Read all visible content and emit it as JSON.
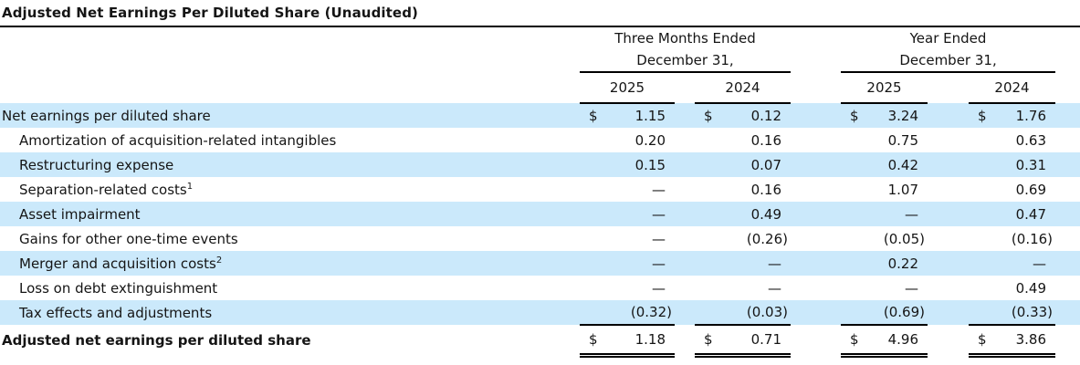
{
  "title": "Adjusted Net Earnings Per Diluted Share (Unaudited)",
  "table": {
    "currency_symbol": "$",
    "column_groups": [
      {
        "period": "Three Months Ended",
        "date": "December 31,",
        "years": [
          "2025",
          "2024"
        ]
      },
      {
        "period": "Year Ended",
        "date": "December 31,",
        "years": [
          "2025",
          "2024"
        ]
      }
    ],
    "rows": [
      {
        "label": "Net earnings per diluted share",
        "sup": "",
        "indent": false,
        "currency": true,
        "is_total": false,
        "values": [
          "1.15",
          "0.12",
          "3.24",
          "1.76"
        ]
      },
      {
        "label": "Amortization of acquisition-related intangibles",
        "sup": "",
        "indent": true,
        "currency": false,
        "is_total": false,
        "values": [
          "0.20",
          "0.16",
          "0.75",
          "0.63"
        ]
      },
      {
        "label": "Restructuring expense",
        "sup": "",
        "indent": true,
        "currency": false,
        "is_total": false,
        "values": [
          "0.15",
          "0.07",
          "0.42",
          "0.31"
        ]
      },
      {
        "label": "Separation-related costs",
        "sup": "1",
        "indent": true,
        "currency": false,
        "is_total": false,
        "values": [
          "—",
          "0.16",
          "1.07",
          "0.69"
        ]
      },
      {
        "label": "Asset impairment",
        "sup": "",
        "indent": true,
        "currency": false,
        "is_total": false,
        "values": [
          "—",
          "0.49",
          "—",
          "0.47"
        ]
      },
      {
        "label": "Gains for other one-time events",
        "sup": "",
        "indent": true,
        "currency": false,
        "is_total": false,
        "values": [
          "—",
          "(0.26)",
          "(0.05)",
          "(0.16)"
        ]
      },
      {
        "label": "Merger and acquisition costs",
        "sup": "2",
        "indent": true,
        "currency": false,
        "is_total": false,
        "values": [
          "—",
          "—",
          "0.22",
          "—"
        ]
      },
      {
        "label": "Loss on debt extinguishment",
        "sup": "",
        "indent": true,
        "currency": false,
        "is_total": false,
        "values": [
          "—",
          "—",
          "—",
          "0.49"
        ]
      },
      {
        "label": "Tax effects and adjustments",
        "sup": "",
        "indent": true,
        "currency": false,
        "is_total": false,
        "values": [
          "(0.32)",
          "(0.03)",
          "(0.69)",
          "(0.33)"
        ]
      },
      {
        "label": "Adjusted net earnings per diluted share",
        "sup": "",
        "indent": false,
        "currency": true,
        "is_total": true,
        "values": [
          "1.18",
          "0.71",
          "4.96",
          "3.86"
        ]
      }
    ]
  },
  "colors": {
    "row_band": "#cbe9fb",
    "text": "#151515",
    "rule": "#000000"
  }
}
